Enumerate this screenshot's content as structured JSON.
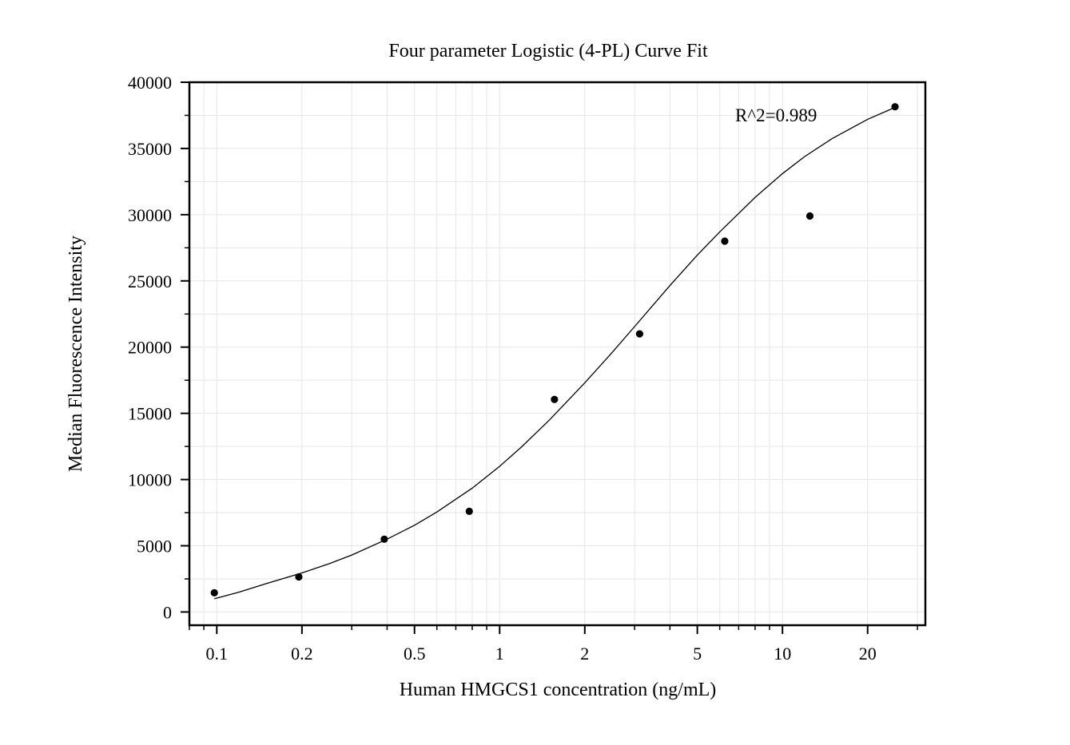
{
  "chart_data": {
    "type": "scatter",
    "title": "Four parameter Logistic (4-PL) Curve Fit",
    "xlabel": "Human HMGCS1 concentration (ng/mL)",
    "ylabel": "Median Fluorescence Intensity",
    "x_scale": "log",
    "xlim": [
      0.08,
      32
    ],
    "ylim": [
      -1000,
      40000
    ],
    "x_ticks": [
      0.1,
      0.2,
      0.5,
      1,
      2,
      5,
      10,
      20
    ],
    "x_tick_labels": [
      "0.1",
      "0.2",
      "0.5",
      "1",
      "2",
      "5",
      "10",
      "20"
    ],
    "y_ticks": [
      0,
      5000,
      10000,
      15000,
      20000,
      25000,
      30000,
      35000,
      40000
    ],
    "y_tick_labels": [
      "0",
      "5000",
      "10000",
      "15000",
      "20000",
      "25000",
      "30000",
      "35000",
      "40000"
    ],
    "grid": true,
    "annotation": "R^2=0.989",
    "points": {
      "x": [
        0.098,
        0.195,
        0.391,
        0.781,
        1.5625,
        3.125,
        6.25,
        12.5,
        25
      ],
      "y": [
        1450,
        2650,
        5500,
        7600,
        16050,
        21000,
        28000,
        29900,
        38150
      ]
    },
    "fit_curve": {
      "model": "4PL",
      "x": [
        0.098,
        0.12,
        0.15,
        0.2,
        0.25,
        0.3,
        0.4,
        0.5,
        0.6,
        0.8,
        1,
        1.2,
        1.5,
        2,
        2.5,
        3,
        4,
        5,
        6,
        8,
        10,
        12,
        15,
        20,
        25
      ],
      "y": [
        1000,
        1500,
        2150,
        2950,
        3650,
        4300,
        5500,
        6550,
        7550,
        9350,
        11000,
        12500,
        14500,
        17300,
        19600,
        21550,
        24650,
        26950,
        28700,
        31300,
        33100,
        34400,
        35750,
        37200,
        38100
      ]
    },
    "marker_color": "#000000",
    "line_color": "#000000"
  }
}
